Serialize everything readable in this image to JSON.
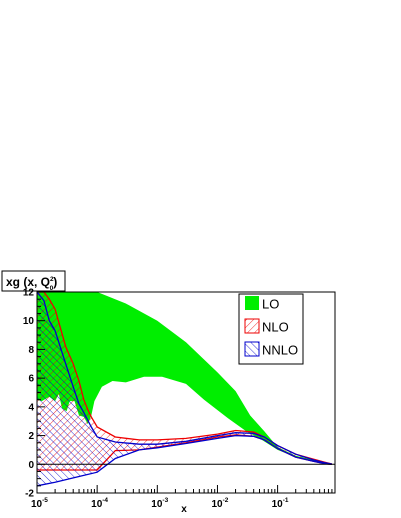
{
  "chart_data": {
    "type": "area",
    "title": "",
    "ylabel": "xg (x, Q",
    "ylabel_sub": "0",
    "ylabel_sup": "2",
    "ylabel_close": ")",
    "xlabel": "x",
    "xscale": "log",
    "xlim": [
      1e-05,
      0.9
    ],
    "ylim": [
      -2,
      12
    ],
    "y_ticks": [
      "-2",
      "0",
      "2",
      "4",
      "6",
      "8",
      "10",
      "12"
    ],
    "x_ticks": [
      {
        "base": "10",
        "exp": "-5",
        "value": 1e-05
      },
      {
        "base": "10",
        "exp": "-4",
        "value": 0.0001
      },
      {
        "base": "10",
        "exp": "-3",
        "value": 0.001
      },
      {
        "base": "10",
        "exp": "-2",
        "value": 0.01
      },
      {
        "base": "10",
        "exp": "-1",
        "value": 0.1
      }
    ],
    "grid": false,
    "legend_position": "top-right",
    "series": [
      {
        "name": "LO",
        "color": "#00ee00",
        "fill": "solid",
        "upper": [
          [
            1e-05,
            12.0
          ],
          [
            1.3e-05,
            12.0
          ],
          [
            2e-05,
            12.0
          ],
          [
            3e-05,
            12.0
          ],
          [
            6e-05,
            12.0
          ],
          [
            0.0001,
            12.0
          ],
          [
            0.0003,
            11.2
          ],
          [
            0.001,
            10.0
          ],
          [
            0.003,
            8.5
          ],
          [
            0.01,
            6.4
          ],
          [
            0.02,
            5.1
          ],
          [
            0.035,
            3.4
          ],
          [
            0.06,
            2.3
          ],
          [
            0.1,
            1.2
          ],
          [
            0.2,
            0.6
          ],
          [
            0.4,
            0.3
          ],
          [
            0.6,
            0.15
          ],
          [
            0.8,
            0.05
          ]
        ],
        "lower": [
          [
            1e-05,
            4.5
          ],
          [
            1.2e-05,
            4.4
          ],
          [
            1.6e-05,
            4.7
          ],
          [
            2e-05,
            4.4
          ],
          [
            2.3e-05,
            4.9
          ],
          [
            2.6e-05,
            3.9
          ],
          [
            3.1e-05,
            3.7
          ],
          [
            3.5e-05,
            4.4
          ],
          [
            4.2e-05,
            4.4
          ],
          [
            5e-05,
            3.4
          ],
          [
            6e-05,
            3.3
          ],
          [
            7e-05,
            2.8
          ],
          [
            8e-05,
            3.4
          ],
          [
            9e-05,
            4.4
          ],
          [
            0.00012,
            5.4
          ],
          [
            0.00018,
            5.8
          ],
          [
            0.0003,
            5.7
          ],
          [
            0.0006,
            6.1
          ],
          [
            0.0012,
            6.1
          ],
          [
            0.003,
            5.6
          ],
          [
            0.006,
            4.5
          ],
          [
            0.015,
            3.2
          ],
          [
            0.03,
            2.3
          ],
          [
            0.05,
            1.8
          ],
          [
            0.1,
            1.0
          ],
          [
            0.2,
            0.5
          ],
          [
            0.4,
            0.2
          ],
          [
            0.6,
            0.1
          ],
          [
            0.8,
            0.04
          ]
        ]
      },
      {
        "name": "NLO",
        "color": "#ee0000",
        "fill": "hatch",
        "upper": [
          [
            1e-05,
            12.0
          ],
          [
            1.3e-05,
            12.0
          ],
          [
            1.6e-05,
            11.5
          ],
          [
            2e-05,
            10.8
          ],
          [
            3e-05,
            8.2
          ],
          [
            4e-05,
            7.0
          ],
          [
            5e-05,
            5.8
          ],
          [
            6e-05,
            4.5
          ],
          [
            7e-05,
            3.8
          ],
          [
            8e-05,
            3.3
          ],
          [
            0.0001,
            2.6
          ],
          [
            0.0002,
            1.9
          ],
          [
            0.0005,
            1.7
          ],
          [
            0.001,
            1.7
          ],
          [
            0.003,
            1.8
          ],
          [
            0.01,
            2.1
          ],
          [
            0.02,
            2.35
          ],
          [
            0.04,
            2.25
          ],
          [
            0.06,
            1.9
          ],
          [
            0.1,
            1.3
          ],
          [
            0.2,
            0.7
          ],
          [
            0.4,
            0.35
          ],
          [
            0.6,
            0.15
          ],
          [
            0.8,
            0.02
          ]
        ],
        "lower": [
          [
            1e-05,
            -0.4
          ],
          [
            2e-05,
            -0.4
          ],
          [
            5e-05,
            -0.4
          ],
          [
            0.0001,
            -0.4
          ],
          [
            0.0002,
            0.95
          ],
          [
            0.0005,
            1.0
          ],
          [
            0.001,
            1.2
          ],
          [
            0.003,
            1.5
          ],
          [
            0.01,
            1.9
          ],
          [
            0.02,
            2.05
          ],
          [
            0.04,
            1.95
          ],
          [
            0.06,
            1.7
          ],
          [
            0.1,
            1.1
          ],
          [
            0.2,
            0.5
          ],
          [
            0.4,
            0.2
          ],
          [
            0.6,
            0.05
          ],
          [
            0.8,
            0.0
          ]
        ]
      },
      {
        "name": "NNLO",
        "color": "#0000cc",
        "fill": "hatch",
        "upper": [
          [
            1e-05,
            12.0
          ],
          [
            1.3e-05,
            11.4
          ],
          [
            1.6e-05,
            10.0
          ],
          [
            2e-05,
            9.3
          ],
          [
            3e-05,
            7.0
          ],
          [
            4e-05,
            5.4
          ],
          [
            5e-05,
            4.2
          ],
          [
            6e-05,
            3.6
          ],
          [
            8e-05,
            2.6
          ],
          [
            0.0001,
            1.9
          ],
          [
            0.0002,
            1.55
          ],
          [
            0.0005,
            1.4
          ],
          [
            0.001,
            1.4
          ],
          [
            0.003,
            1.6
          ],
          [
            0.01,
            2.0
          ],
          [
            0.02,
            2.2
          ],
          [
            0.04,
            2.15
          ],
          [
            0.06,
            1.9
          ],
          [
            0.1,
            1.3
          ],
          [
            0.2,
            0.7
          ],
          [
            0.4,
            0.3
          ],
          [
            0.6,
            0.12
          ],
          [
            0.8,
            0.02
          ]
        ],
        "lower": [
          [
            1e-05,
            -1.5
          ],
          [
            2e-05,
            -1.25
          ],
          [
            5e-05,
            -0.85
          ],
          [
            0.0001,
            -0.55
          ],
          [
            0.0002,
            0.4
          ],
          [
            0.0005,
            1.0
          ],
          [
            0.001,
            1.15
          ],
          [
            0.003,
            1.45
          ],
          [
            0.01,
            1.8
          ],
          [
            0.02,
            2.0
          ],
          [
            0.04,
            1.95
          ],
          [
            0.06,
            1.7
          ],
          [
            0.1,
            1.1
          ],
          [
            0.2,
            0.5
          ],
          [
            0.4,
            0.2
          ],
          [
            0.6,
            0.05
          ],
          [
            0.8,
            0.0
          ]
        ]
      }
    ]
  }
}
